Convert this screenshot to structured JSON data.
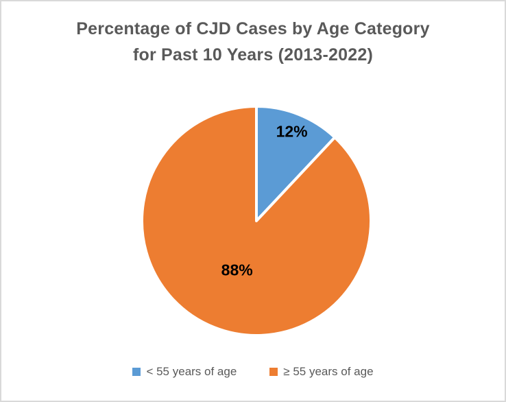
{
  "window": {
    "background": "#FFFFFF",
    "border_color": "#D9D9D9"
  },
  "chart_data": {
    "type": "pie",
    "title": "Percentage of CJD Cases by Age Category for Past 10 Years (2013-2022)",
    "title_lines": [
      "Percentage of CJD Cases by Age Category",
      "for Past 10 Years (2013-2022)"
    ],
    "categories": [
      "< 55 years of age",
      "≥ 55 years of age"
    ],
    "values": [
      12,
      88
    ],
    "data_labels": [
      "12%",
      "88%"
    ],
    "colors": [
      "#5B9BD5",
      "#ED7D31"
    ],
    "slice_border_color": "#FFFFFF",
    "title_color": "#595959",
    "label_color": "#000000",
    "legend_text_color": "#595959",
    "start_angle_deg": -90,
    "direction": "clockwise",
    "legend_position": "bottom",
    "label_radius_fractions": [
      0.84,
      0.46
    ]
  }
}
